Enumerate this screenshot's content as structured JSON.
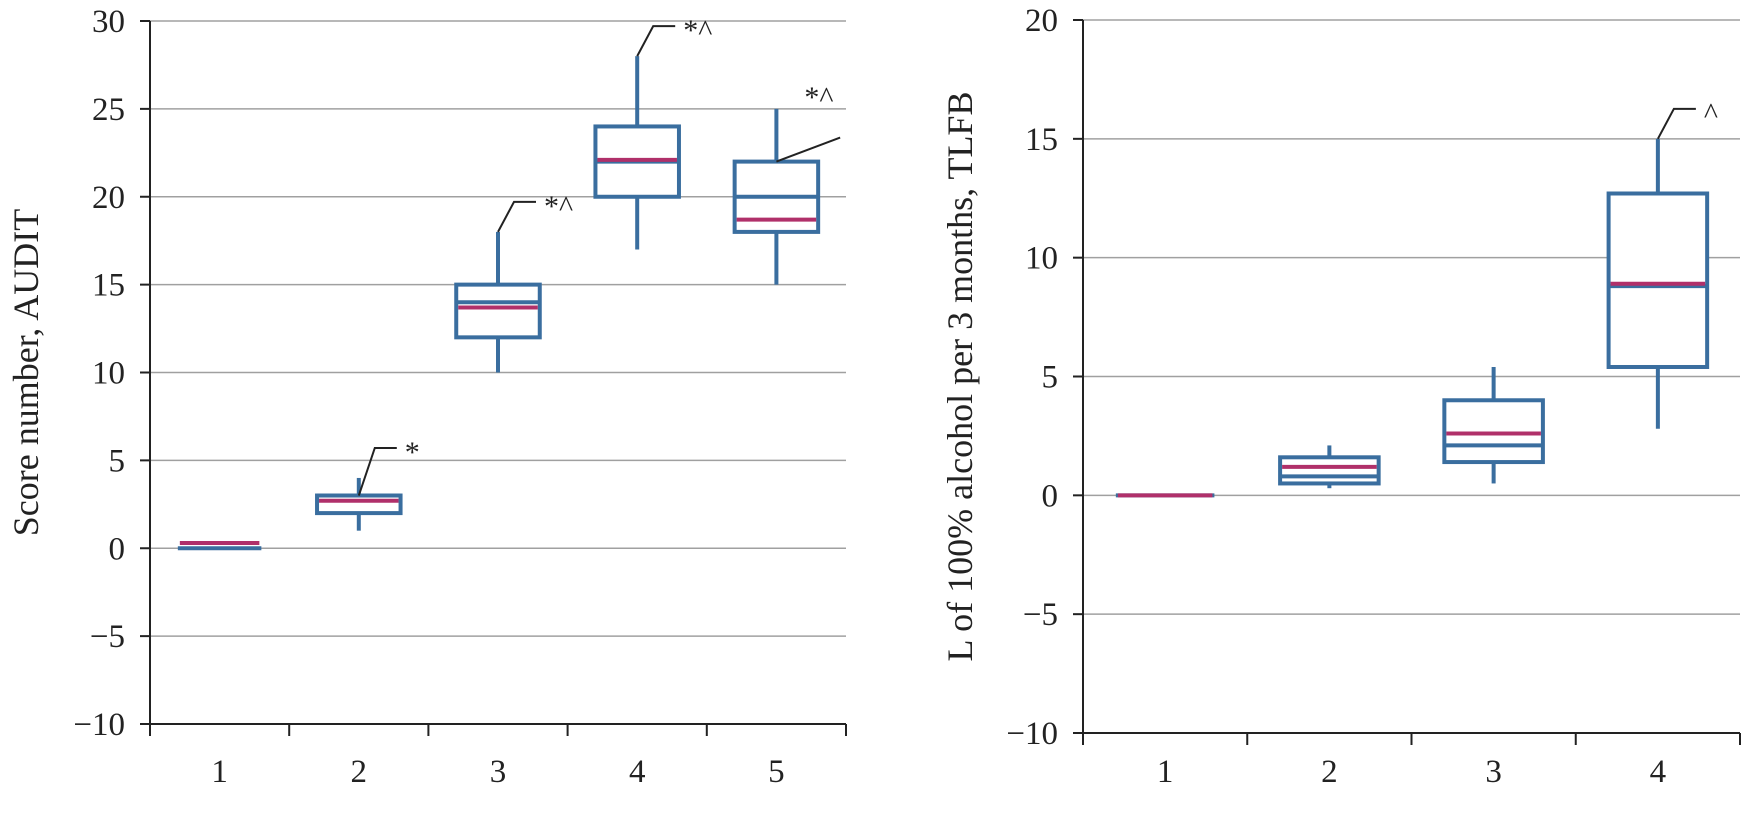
{
  "colors": {
    "box": "#3a6e9f",
    "mean": "#b0306a",
    "grid": "#a0a0a0",
    "axis": "#222222",
    "text": "#222222"
  },
  "chart_data": [
    {
      "type": "box",
      "title": "",
      "xlabel": "",
      "ylabel": "Score number, AUDIT",
      "ylim": [
        -10,
        30
      ],
      "yticks": [
        -10,
        -5,
        0,
        5,
        10,
        15,
        20,
        25,
        30
      ],
      "ytick_labels": [
        "−10",
        "−5",
        "0",
        "5",
        "10",
        "15",
        "20",
        "25",
        "30"
      ],
      "categories": [
        "1",
        "2",
        "3",
        "4",
        "5"
      ],
      "grid": true,
      "boxes": [
        {
          "category": "1",
          "min": 0,
          "q1": 0,
          "median": 0,
          "q3": 0,
          "max": 0,
          "mean": 0.3,
          "annotation": ""
        },
        {
          "category": "2",
          "min": 1,
          "q1": 2,
          "median": 3,
          "q3": 3,
          "max": 4,
          "mean": 2.7,
          "annotation": "*"
        },
        {
          "category": "3",
          "min": 10,
          "q1": 12,
          "median": 14,
          "q3": 15,
          "max": 18,
          "mean": 13.7,
          "annotation": "*^"
        },
        {
          "category": "4",
          "min": 17,
          "q1": 20,
          "median": 22,
          "q3": 24,
          "max": 28,
          "mean": 22.1,
          "annotation": "*^"
        },
        {
          "category": "5",
          "min": 15,
          "q1": 18,
          "median": 20,
          "q3": 22,
          "max": 25,
          "mean": 18.7,
          "annotation": "*^"
        }
      ]
    },
    {
      "type": "box",
      "title": "",
      "xlabel": "",
      "ylabel": "L of 100% alcohol per 3 months, TLFB",
      "ylim": [
        -10,
        20
      ],
      "yticks": [
        -10,
        -5,
        0,
        5,
        10,
        15,
        20
      ],
      "ytick_labels": [
        "−10",
        "−5",
        "0",
        "5",
        "10",
        "15",
        "20"
      ],
      "categories": [
        "1",
        "2",
        "3",
        "4"
      ],
      "grid": true,
      "boxes": [
        {
          "category": "1",
          "min": 0,
          "q1": 0,
          "median": 0,
          "q3": 0,
          "max": 0,
          "mean": 0,
          "annotation": ""
        },
        {
          "category": "2",
          "min": 0.3,
          "q1": 0.5,
          "median": 0.8,
          "q3": 1.6,
          "max": 2.1,
          "mean": 1.2,
          "annotation": ""
        },
        {
          "category": "3",
          "min": 0.5,
          "q1": 1.4,
          "median": 2.1,
          "q3": 4.0,
          "max": 5.4,
          "mean": 2.6,
          "annotation": ""
        },
        {
          "category": "4",
          "min": 2.8,
          "q1": 5.4,
          "median": 8.8,
          "q3": 12.7,
          "max": 15.0,
          "mean": 8.9,
          "annotation": "^"
        }
      ]
    }
  ]
}
